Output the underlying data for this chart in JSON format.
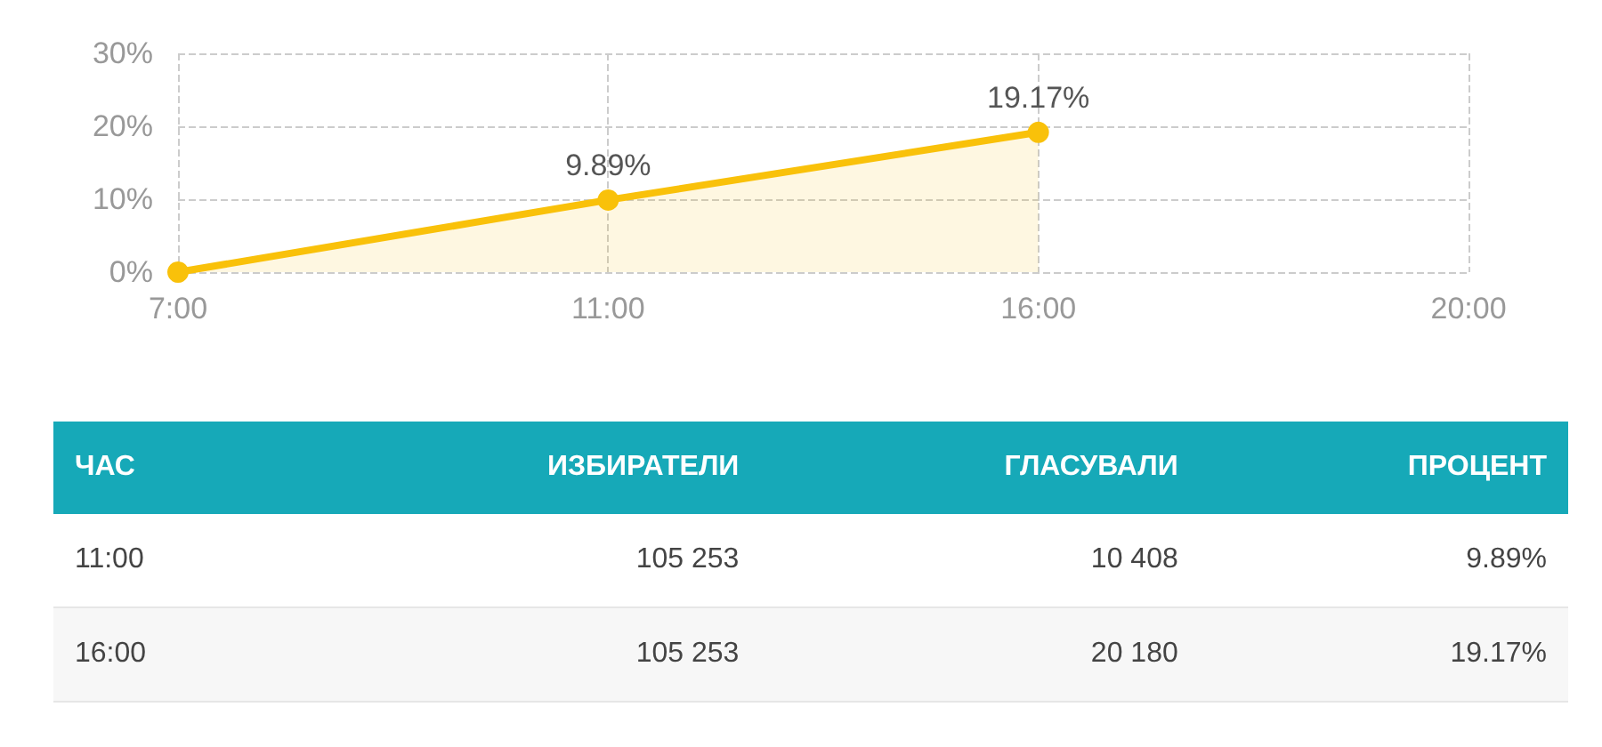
{
  "chart_data": [
    {
      "type": "area",
      "categories": [
        "7:00",
        "11:00",
        "16:00",
        "20:00"
      ],
      "series": [
        {
          "color": "#f9c10a",
          "values": [
            0,
            9.89,
            19.17,
            null
          ],
          "value_labels": [
            null,
            "9.89%",
            "19.17%",
            null
          ]
        }
      ],
      "ylim": [
        0,
        30
      ],
      "yticks": [
        {
          "value": 0,
          "label": "0%"
        },
        {
          "value": 10,
          "label": "10%"
        },
        {
          "value": 20,
          "label": "20%"
        },
        {
          "value": 30,
          "label": "30%"
        }
      ],
      "grid": true,
      "marker": "circle",
      "line_style": "solid"
    },
    {
      "type": "other",
      "annotations": [
        "ЧАС",
        "ИЗБИРАТЕЛИ",
        "ГЛАСУВАЛИ",
        "ПРОЦЕНТ",
        "11:00",
        "105 253",
        "10 408",
        "9.89%",
        "16:00",
        "105 253",
        "20 180",
        "19.17%"
      ]
    }
  ]
}
